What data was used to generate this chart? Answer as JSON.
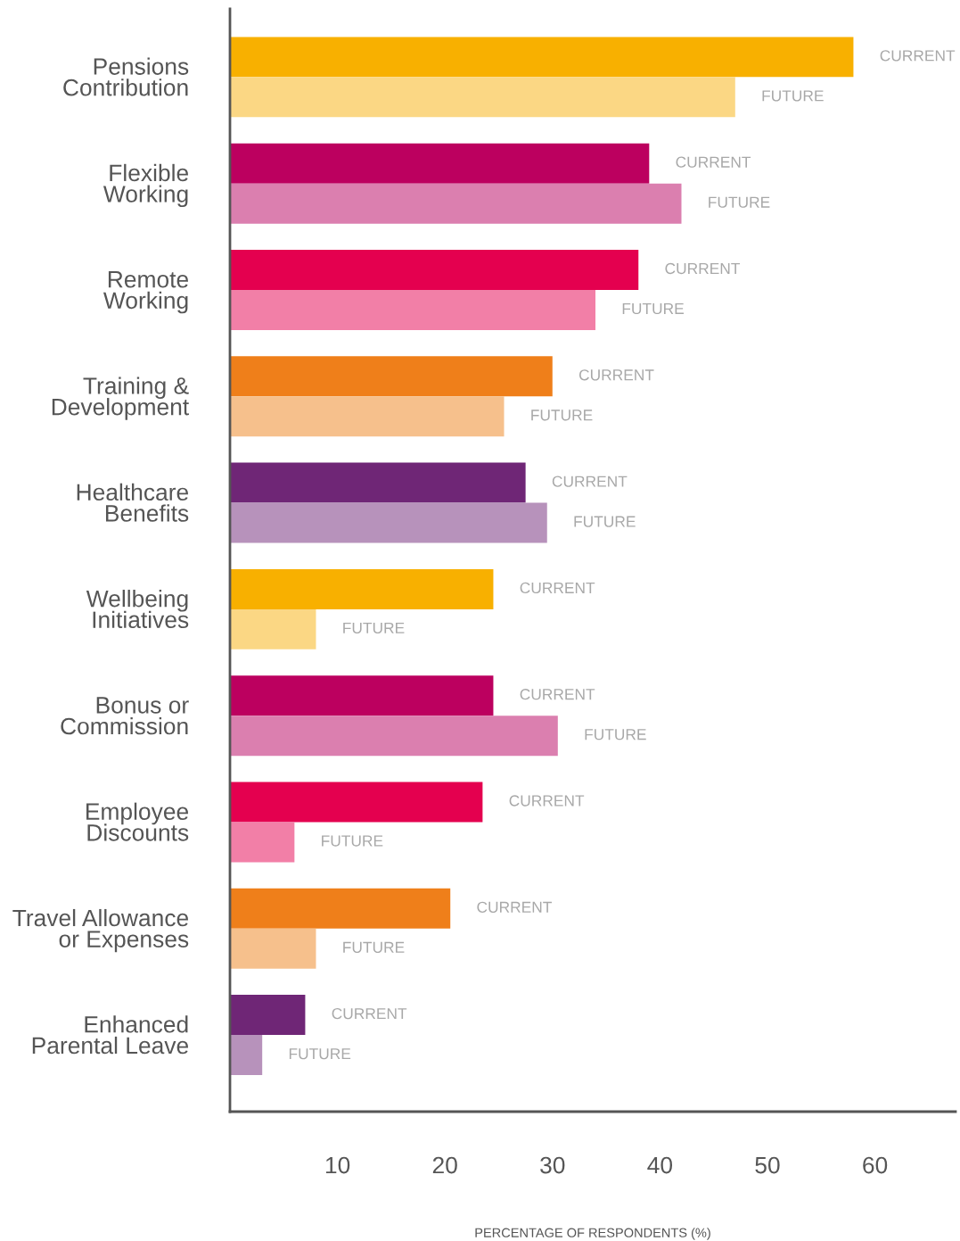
{
  "chart_data": {
    "type": "bar",
    "orientation": "horizontal",
    "xlabel": "PERCENTAGE OF RESPONDENTS (%)",
    "categories": [
      "Pensions\nContribution",
      "Flexible\nWorking",
      "Remote\nWorking",
      "Training &\nDevelopment",
      "Healthcare\nBenefits",
      "Wellbeing\nInitiatives",
      "Bonus or\nCommission",
      "Employee\nDiscounts",
      "Travel Allowance\nor Expenses",
      "Enhanced\nParental Leave"
    ],
    "series": [
      {
        "name": "CURRENT",
        "values": [
          58,
          39,
          38,
          30,
          27.5,
          24.5,
          24.5,
          23.5,
          20.5,
          7
        ],
        "colors": [
          "#f8b000",
          "#bc005f",
          "#e4004f",
          "#ef7f1a",
          "#6f2676",
          "#f8b000",
          "#bc005f",
          "#e4004f",
          "#ef7f1a",
          "#6f2676"
        ]
      },
      {
        "name": "FUTURE",
        "values": [
          47,
          42,
          34,
          25.5,
          29.5,
          8,
          30.5,
          6,
          8,
          3
        ],
        "colors": [
          "#fbd784",
          "#db7faf",
          "#f27fa7",
          "#f6c08c",
          "#b792bb",
          "#fbd784",
          "#db7faf",
          "#f27fa7",
          "#f6c08c",
          "#b792bb"
        ]
      }
    ],
    "xlim": [
      0,
      67.5
    ],
    "xticks": [
      10,
      20,
      30,
      40,
      50,
      60
    ],
    "grid": false,
    "legend": false
  }
}
